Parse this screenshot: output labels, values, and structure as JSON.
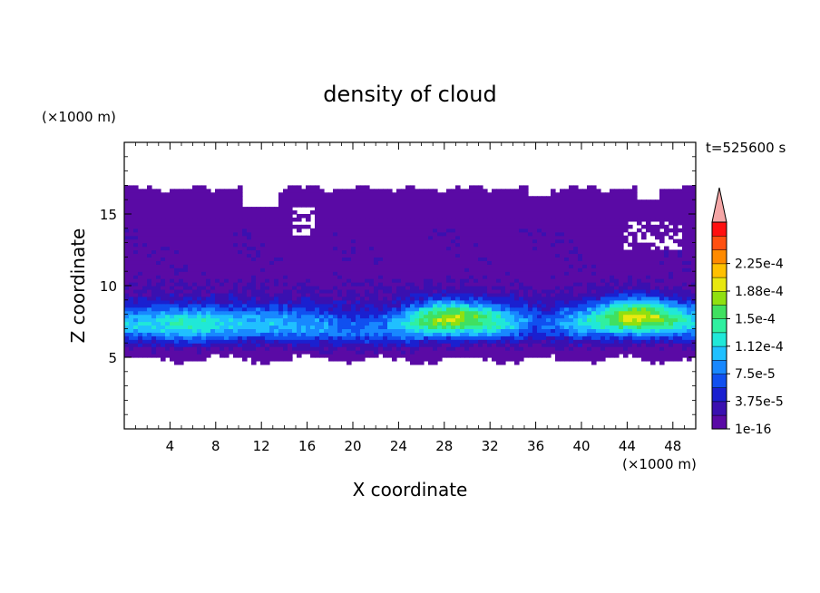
{
  "chart_data": {
    "type": "heatmap",
    "title": "density of cloud",
    "time_label": "t=525600 s",
    "xlabel": "X coordinate",
    "ylabel": "Z coordinate",
    "x_unit": "(×1000 m)",
    "y_unit": "(×1000 m)",
    "xlim": [
      0,
      50
    ],
    "ylim": [
      0,
      20
    ],
    "x_ticks": [
      4,
      8,
      12,
      16,
      20,
      24,
      28,
      32,
      36,
      40,
      44,
      48
    ],
    "y_ticks": [
      5,
      10,
      15
    ],
    "colorbar": {
      "levels": [
        "1e-16",
        "3.75e-5",
        "7.5e-5",
        "1.12e-4",
        "1.5e-4",
        "1.88e-4",
        "2.25e-4"
      ],
      "colors": [
        "#5a0aa5",
        "#3a10b0",
        "#1a20d0",
        "#1050f0",
        "#1888ff",
        "#20c0ff",
        "#20e8d8",
        "#30f0a0",
        "#40e060",
        "#90e010",
        "#e8e810",
        "#ffc000",
        "#ff8a00",
        "#ff5010",
        "#ff1010",
        "#f4a6a6"
      ]
    },
    "bands": [
      {
        "level": 0,
        "description": "thin cloud layer",
        "z_range": [
          5,
          17
        ]
      },
      {
        "level": 3,
        "description": "main cloud layer",
        "z_range": [
          5,
          9
        ]
      },
      {
        "level": 9,
        "description": "density maxima near x=28-30, 44-46",
        "z_range": [
          7,
          8.5
        ]
      }
    ]
  }
}
